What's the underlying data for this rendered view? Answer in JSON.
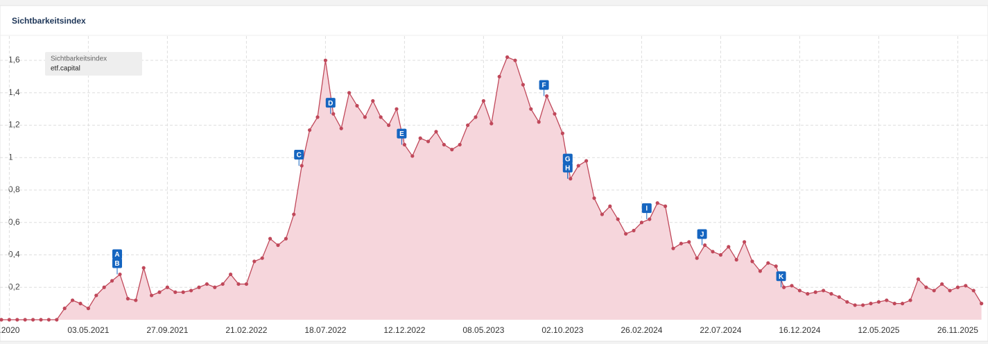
{
  "chart_data": {
    "type": "area",
    "title": "Sichtbarkeitsindex",
    "legend": {
      "title": "Sichtbarkeitsindex",
      "label": "etf.capital"
    },
    "categories": [
      null,
      ".2020",
      null,
      null,
      null,
      null,
      null,
      null,
      null,
      null,
      null,
      "03.05.2021",
      null,
      null,
      null,
      null,
      null,
      null,
      null,
      null,
      null,
      "27.09.2021",
      null,
      null,
      null,
      null,
      null,
      null,
      null,
      null,
      null,
      "21.02.2022",
      null,
      null,
      null,
      null,
      null,
      null,
      null,
      null,
      null,
      "18.07.2022",
      null,
      null,
      null,
      null,
      null,
      null,
      null,
      null,
      null,
      "12.12.2022",
      null,
      null,
      null,
      null,
      null,
      null,
      null,
      null,
      null,
      "08.05.2023",
      null,
      null,
      null,
      null,
      null,
      null,
      null,
      null,
      null,
      "02.10.2023",
      null,
      null,
      null,
      null,
      null,
      null,
      null,
      null,
      null,
      "26.02.2024",
      null,
      null,
      null,
      null,
      null,
      null,
      null,
      null,
      null,
      "22.07.2024",
      null,
      null,
      null,
      null,
      null,
      null,
      null,
      null,
      null,
      "16.12.2024",
      null,
      null,
      null,
      null,
      null,
      null,
      null,
      null,
      null,
      "12.05.2025",
      null,
      null,
      null,
      null,
      null,
      null,
      null,
      null,
      null,
      "26.11.2025",
      null,
      null,
      null
    ],
    "series": [
      {
        "name": "etf.capital",
        "color": "#c0485a",
        "fill": "#f6d6dc",
        "values": [
          0,
          0,
          0,
          0,
          0,
          0,
          0,
          0,
          0.07,
          0.12,
          0.1,
          0.07,
          0.15,
          0.2,
          0.24,
          0.28,
          0.13,
          0.12,
          0.32,
          0.15,
          0.17,
          0.2,
          0.17,
          0.17,
          0.18,
          0.2,
          0.22,
          0.2,
          0.22,
          0.28,
          0.22,
          0.22,
          0.36,
          0.38,
          0.5,
          0.46,
          0.5,
          0.65,
          0.95,
          1.17,
          1.25,
          1.6,
          1.27,
          1.18,
          1.4,
          1.32,
          1.25,
          1.35,
          1.25,
          1.2,
          1.3,
          1.08,
          1.01,
          1.12,
          1.1,
          1.16,
          1.08,
          1.05,
          1.08,
          1.2,
          1.25,
          1.35,
          1.21,
          1.5,
          1.62,
          1.6,
          1.45,
          1.3,
          1.22,
          1.38,
          1.27,
          1.15,
          0.87,
          0.95,
          0.98,
          0.75,
          0.65,
          0.7,
          0.62,
          0.53,
          0.55,
          0.6,
          0.62,
          0.72,
          0.7,
          0.44,
          0.47,
          0.48,
          0.38,
          0.46,
          0.42,
          0.4,
          0.45,
          0.37,
          0.48,
          0.36,
          0.3,
          0.35,
          0.33,
          0.2,
          0.21,
          0.18,
          0.16,
          0.17,
          0.18,
          0.16,
          0.14,
          0.11,
          0.09,
          0.09,
          0.1,
          0.11,
          0.12,
          0.1,
          0.1,
          0.12,
          0.25,
          0.2,
          0.18,
          0.22,
          0.18,
          0.2,
          0.21,
          0.18,
          0.1
        ]
      }
    ],
    "events": [
      {
        "label": "A",
        "at": 15
      },
      {
        "label": "B",
        "at": 15
      },
      {
        "label": "C",
        "at": 38
      },
      {
        "label": "D",
        "at": 42
      },
      {
        "label": "E",
        "at": 51
      },
      {
        "label": "F",
        "at": 69
      },
      {
        "label": "G",
        "at": 72
      },
      {
        "label": "H",
        "at": 72
      },
      {
        "label": "I",
        "at": 82
      },
      {
        "label": "J",
        "at": 89
      },
      {
        "label": "K",
        "at": 99
      }
    ],
    "ylim": [
      0,
      1.75
    ],
    "yticks": [
      {
        "value": 0.2,
        "label": "0,2"
      },
      {
        "value": 0.4,
        "label": "0,4"
      },
      {
        "value": 0.6,
        "label": "0,6"
      },
      {
        "value": 0.8,
        "label": "0,8"
      },
      1,
      {
        "value": 1.2,
        "label": "1,2"
      },
      {
        "value": 1.4,
        "label": "1,4"
      },
      {
        "value": 1.6,
        "label": "1,6"
      }
    ],
    "grid": true
  }
}
